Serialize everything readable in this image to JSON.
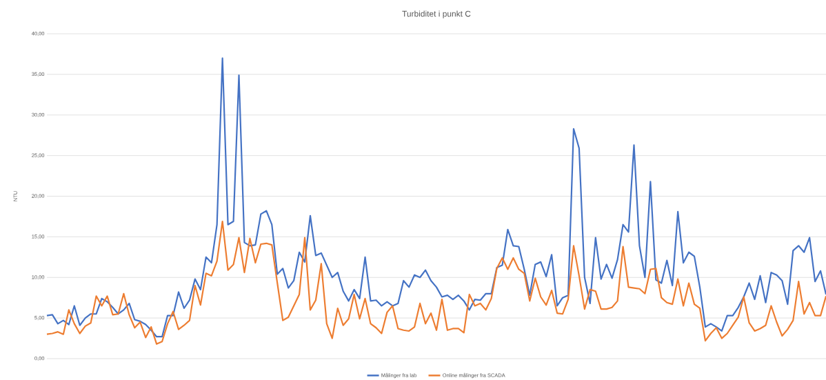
{
  "chart_data": {
    "type": "line",
    "title": "Turbiditet i punkt C",
    "ylabel": "NTU",
    "categories": [
      null,
      null,
      null,
      null,
      null,
      null,
      null,
      null,
      null,
      null,
      null,
      null,
      null,
      null,
      null,
      null,
      null,
      null,
      null,
      null,
      null,
      null,
      null,
      null,
      null,
      null,
      null,
      null,
      null,
      null,
      null,
      null,
      null,
      null,
      null,
      null,
      null,
      null,
      null,
      null,
      null,
      null,
      null,
      null,
      null,
      null,
      null,
      null,
      null,
      null,
      null,
      null,
      null,
      null,
      null,
      null,
      null,
      null,
      null,
      null,
      null,
      null,
      null,
      null,
      null,
      null,
      null,
      null,
      null,
      null,
      null,
      null,
      null,
      null,
      null,
      null,
      null,
      null,
      null,
      null,
      null,
      null,
      null,
      null,
      null,
      null,
      null,
      null,
      null,
      null,
      null,
      null,
      null,
      null,
      null,
      null,
      null,
      null,
      null,
      null,
      null,
      null,
      null,
      null,
      null,
      null,
      null,
      null,
      null,
      null,
      null,
      null,
      null,
      null,
      null,
      null,
      null,
      null,
      null,
      null,
      null,
      null,
      null,
      null,
      null,
      null,
      null,
      null,
      null,
      null,
      null,
      null,
      null,
      null,
      null,
      null,
      null,
      null,
      null,
      null,
      null,
      null,
      null
    ],
    "series": [
      {
        "name": "Målinger fra lab",
        "color": "#4472c4",
        "values": [
          5.3,
          5.4,
          4.3,
          4.7,
          4.2,
          6.5,
          4.1,
          5.0,
          5.5,
          5.5,
          7.4,
          7.0,
          6.3,
          5.5,
          6.0,
          6.8,
          4.8,
          4.6,
          4.2,
          3.5,
          2.7,
          2.7,
          5.3,
          5.3,
          8.2,
          6.2,
          7.2,
          9.8,
          8.5,
          12.5,
          11.8,
          16.5,
          37.0,
          16.5,
          16.9,
          34.9,
          14.3,
          13.9,
          14.0,
          17.8,
          18.2,
          16.5,
          10.4,
          11.1,
          8.7,
          9.6,
          13.1,
          11.9,
          17.6,
          12.7,
          13.0,
          11.5,
          10.0,
          10.6,
          8.3,
          7.1,
          8.5,
          7.4,
          12.5,
          7.1,
          7.2,
          6.5,
          7.0,
          6.5,
          6.8,
          9.6,
          8.8,
          10.3,
          10.0,
          10.9,
          9.6,
          8.8,
          7.6,
          7.8,
          7.3,
          7.8,
          7.1,
          6.0,
          7.3,
          7.2,
          8.0,
          8.0,
          11.2,
          11.5,
          15.9,
          13.9,
          13.8,
          11.0,
          7.8,
          11.6,
          11.9,
          10.1,
          12.8,
          6.5,
          7.5,
          7.8,
          28.3,
          25.9,
          10.0,
          6.8,
          14.9,
          9.8,
          11.6,
          9.9,
          12.2,
          16.5,
          15.6,
          26.3,
          13.9,
          10.0,
          21.8,
          9.7,
          9.3,
          12.1,
          9.0,
          18.1,
          11.8,
          13.1,
          12.6,
          8.8,
          3.9,
          4.3,
          3.9,
          3.4,
          5.3,
          5.3,
          6.3,
          7.6,
          9.3,
          7.3,
          10.2,
          6.9,
          10.6,
          10.3,
          9.6,
          6.7,
          13.3,
          13.9,
          13.1,
          14.9,
          9.5,
          10.8,
          7.9
        ]
      },
      {
        "name": "Online målinger fra SCADA",
        "color": "#ed7d31",
        "values": [
          3.0,
          3.1,
          3.3,
          3.0,
          6.0,
          4.3,
          3.1,
          4.0,
          4.4,
          7.7,
          6.5,
          7.7,
          5.4,
          5.5,
          8.0,
          5.4,
          3.8,
          4.5,
          2.6,
          3.9,
          1.8,
          2.1,
          4.3,
          5.8,
          3.6,
          4.1,
          4.7,
          9.0,
          6.6,
          10.5,
          10.2,
          12.0,
          16.9,
          10.9,
          11.6,
          14.9,
          10.6,
          14.8,
          11.8,
          14.1,
          14.2,
          14.0,
          9.3,
          4.7,
          5.1,
          6.5,
          7.9,
          14.9,
          6.0,
          7.2,
          11.7,
          4.3,
          2.5,
          6.2,
          4.1,
          4.9,
          7.9,
          4.9,
          7.4,
          4.3,
          3.8,
          3.1,
          5.7,
          6.5,
          3.7,
          3.5,
          3.4,
          3.9,
          6.8,
          4.3,
          5.6,
          3.5,
          7.3,
          3.5,
          3.7,
          3.7,
          3.2,
          7.9,
          6.5,
          6.8,
          6.0,
          7.4,
          11.1,
          12.4,
          11.0,
          12.4,
          11.0,
          10.5,
          7.1,
          9.9,
          7.6,
          6.6,
          8.4,
          5.6,
          5.5,
          7.3,
          13.9,
          10.2,
          6.1,
          8.5,
          8.3,
          6.1,
          6.1,
          6.3,
          7.1,
          13.8,
          8.8,
          8.7,
          8.6,
          8.0,
          11.0,
          11.1,
          7.5,
          6.9,
          6.7,
          9.8,
          6.5,
          9.3,
          6.7,
          6.2,
          2.2,
          3.1,
          3.8,
          2.5,
          3.1,
          4.1,
          5.1,
          7.6,
          4.4,
          3.4,
          3.7,
          4.1,
          6.5,
          4.5,
          2.8,
          3.6,
          4.7,
          9.5,
          5.5,
          6.9,
          5.3,
          5.3,
          7.7
        ]
      }
    ],
    "ylim": [
      0,
      40
    ],
    "yticks": [
      {
        "value": 0,
        "label": "0,00"
      },
      {
        "value": 5,
        "label": "5,00"
      },
      {
        "value": 10,
        "label": "10,00"
      },
      {
        "value": 15,
        "label": "15,00"
      },
      {
        "value": 20,
        "label": "20,00"
      },
      {
        "value": 25,
        "label": "25,00"
      },
      {
        "value": 30,
        "label": "30,00"
      },
      {
        "value": 35,
        "label": "35,00"
      },
      {
        "value": 40,
        "label": "40,00"
      }
    ],
    "grid": "y",
    "legend": "bottom"
  }
}
